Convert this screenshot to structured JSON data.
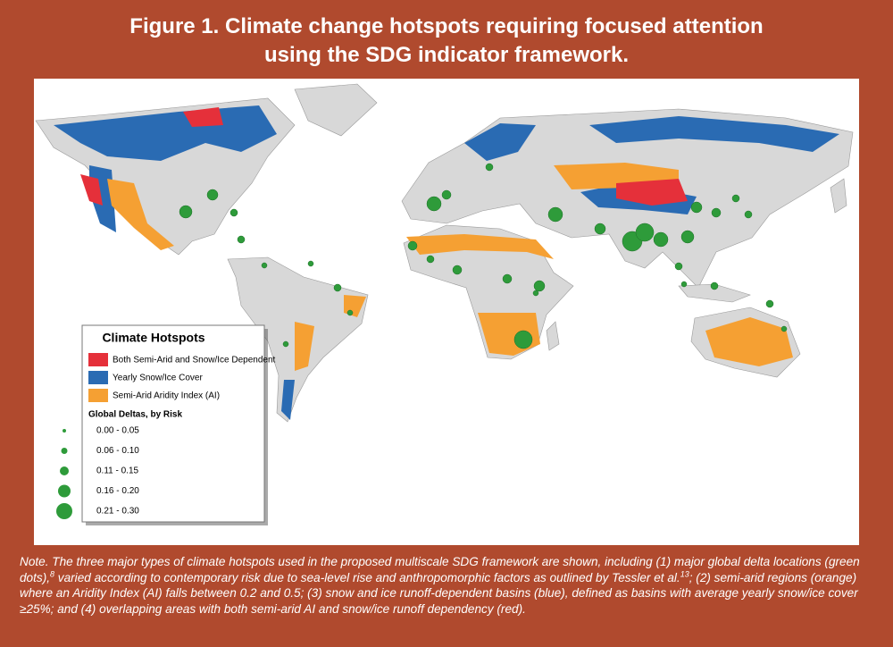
{
  "header": {
    "title_lines": [
      "Figure 1.  Climate change hotspots requiring focused attention",
      "using the SDG indicator framework."
    ]
  },
  "legend": {
    "title": "Climate Hotspots",
    "items": [
      "Both Semi-Arid and Snow/Ice Dependent",
      "Yearly Snow/Ice Cover",
      "Semi-Arid Aridity Index (AI)"
    ],
    "deltas_title": "Global Deltas, by Risk",
    "delta_classes": [
      "0.00 - 0.05",
      "0.06 - 0.10",
      "0.11 - 0.15",
      "0.16 - 0.20",
      "0.21 - 0.30"
    ]
  },
  "note": {
    "label": "Note.",
    "parts": [
      " The three major types of climate hotspots used in the proposed multiscale SDG framework are shown, including (1) major global delta locations (green dots),",
      "8",
      " varied according to contemporary risk due to sea-level rise and anthropomorphic factors as outlined by Tessler et al.",
      "13",
      "; (2) semi-arid regions (orange) where an Aridity Index (AI) falls between 0.2 and 0.5; (3) snow and ice runoff-dependent basins (blue), defined as basins with average yearly snow/ice cover ≥25%; and (4) overlapping areas with both semi-arid AI and snow/ice runoff dependency (red)."
    ]
  }
}
